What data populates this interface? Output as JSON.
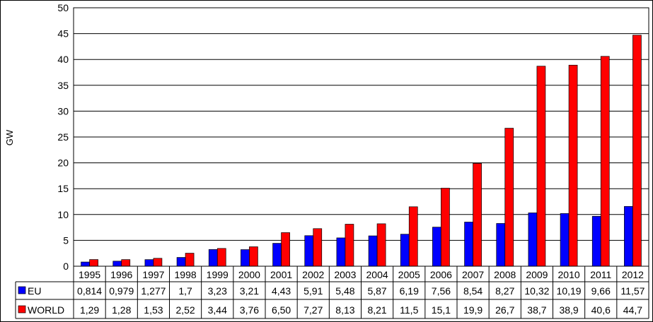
{
  "chart_data": {
    "type": "bar",
    "ylabel": "GW",
    "ylim": [
      0,
      50
    ],
    "yticks": [
      0,
      5,
      10,
      15,
      20,
      25,
      30,
      35,
      40,
      45,
      50
    ],
    "grid": true,
    "categories": [
      "1995",
      "1996",
      "1997",
      "1998",
      "1999",
      "2000",
      "2001",
      "2002",
      "2003",
      "2004",
      "2005",
      "2006",
      "2007",
      "2008",
      "2009",
      "2010",
      "2011",
      "2012"
    ],
    "series": [
      {
        "name": "EU",
        "color": "#0000ff",
        "values": [
          0.814,
          0.979,
          1.277,
          1.7,
          3.23,
          3.21,
          4.43,
          5.91,
          5.48,
          5.87,
          6.19,
          7.56,
          8.54,
          8.27,
          10.32,
          10.19,
          9.66,
          11.57
        ],
        "labels": [
          "0,814",
          "0,979",
          "1,277",
          "1,7",
          "3,23",
          "3,21",
          "4,43",
          "5,91",
          "5,48",
          "5,87",
          "6,19",
          "7,56",
          "8,54",
          "8,27",
          "10,32",
          "10,19",
          "9,66",
          "11,57"
        ]
      },
      {
        "name": "WORLD",
        "color": "#ff0000",
        "values": [
          1.29,
          1.28,
          1.53,
          2.52,
          3.44,
          3.76,
          6.5,
          7.27,
          8.13,
          8.21,
          11.5,
          15.1,
          19.9,
          26.7,
          38.7,
          38.9,
          40.6,
          44.7
        ],
        "labels": [
          "1,29",
          "1,28",
          "1,53",
          "2,52",
          "3,44",
          "3,76",
          "6,50",
          "7,27",
          "8,13",
          "8,21",
          "11,5",
          "15,1",
          "19,9",
          "26,7",
          "38,7",
          "38,9",
          "40,6",
          "44,7"
        ]
      }
    ],
    "data_table": true
  }
}
